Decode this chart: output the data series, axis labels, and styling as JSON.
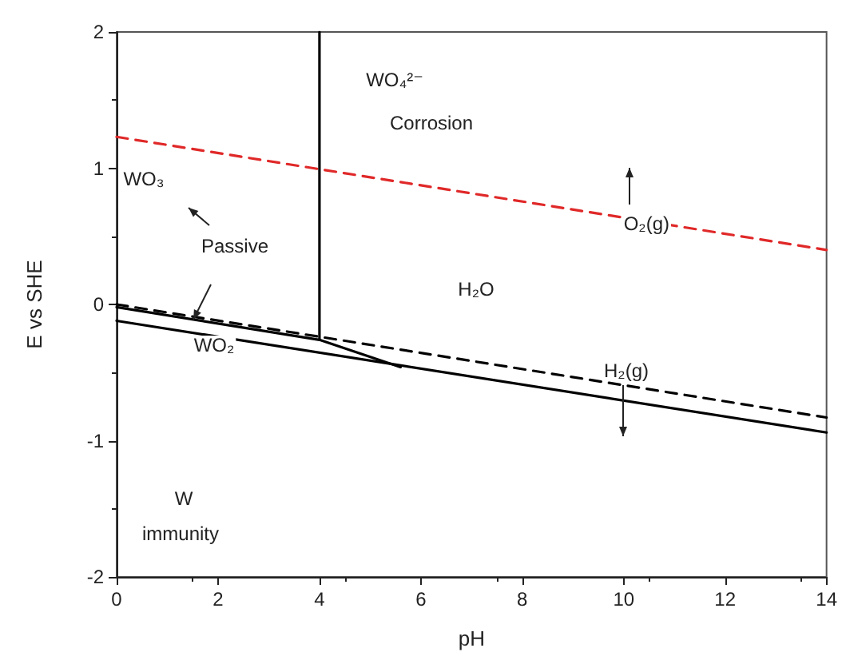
{
  "chart_data": {
    "type": "line",
    "xlabel": "pH",
    "ylabel": "E vs SHE",
    "xlim": [
      0,
      14
    ],
    "xticks": [
      0,
      2,
      4,
      6,
      8,
      10,
      12,
      14
    ],
    "ylim": [
      -2,
      2
    ],
    "yticks": [
      -2,
      -1,
      0,
      1,
      2
    ],
    "grid": false,
    "marker": "none",
    "series": [
      {
        "color": "#e02828",
        "line_style": "dashed",
        "x": [
          0,
          14
        ],
        "values": [
          1.23,
          0.4
        ]
      },
      {
        "color": "#000000",
        "line_style": "dashed",
        "x": [
          0,
          14
        ],
        "values": [
          0,
          -0.83
        ]
      },
      {
        "color": "#000000",
        "line_style": "solid",
        "x": [
          4,
          4
        ],
        "values": [
          2,
          -0.25
        ]
      },
      {
        "color": "#000000",
        "line_style": "solid",
        "x": [
          0,
          4,
          5.6
        ],
        "values": [
          -0.02,
          -0.26,
          -0.46
        ]
      },
      {
        "color": "#000000",
        "line_style": "solid",
        "x": [
          0,
          14
        ],
        "values": [
          -0.12,
          -0.94
        ]
      }
    ],
    "annotations": [
      "WO₄²⁻",
      "Corrosion",
      "WO₃",
      "Passive",
      "H₂O",
      "WO₂",
      {
        "text": "O₂(g)",
        "x": 10.45,
        "y": 0.59
      },
      "H₂(g)",
      "W",
      "immunity"
    ]
  }
}
